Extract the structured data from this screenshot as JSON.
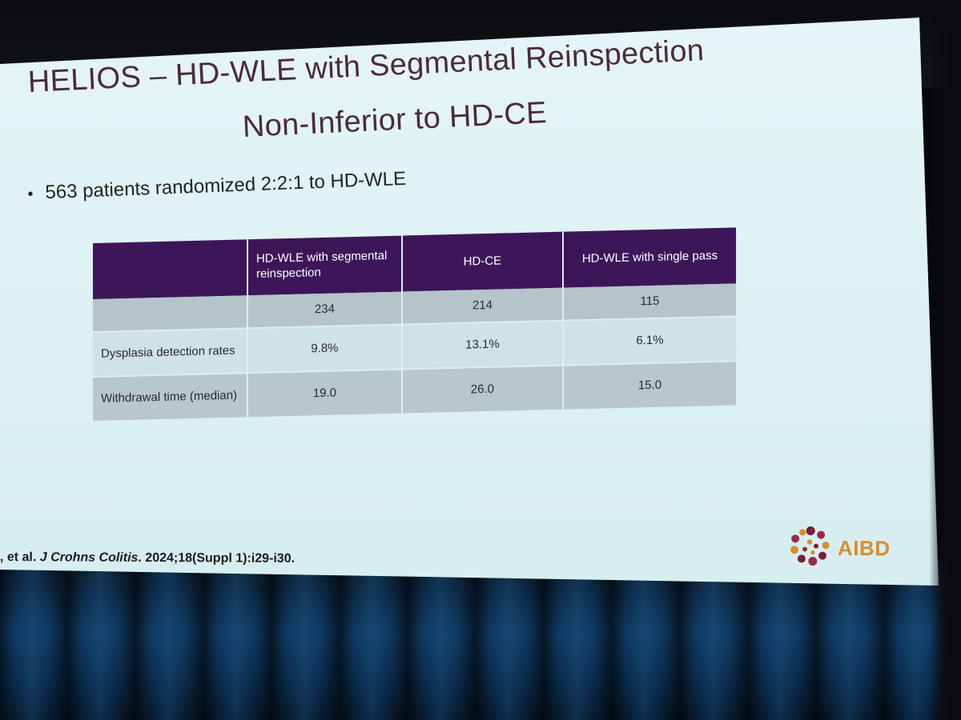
{
  "slide": {
    "title_line1": "HELIOS – HD-WLE with Segmental Reinspection",
    "title_line2": "Non-Inferior to HD-CE",
    "bullet_symbol": "•",
    "bullet": "563 patients randomized 2:2:1 to HD-WLE",
    "table": {
      "headers": [
        "",
        "HD-WLE with segmental reinspection",
        "HD-CE",
        "HD-WLE with single pass"
      ],
      "rows": [
        {
          "label": "",
          "values": [
            "234",
            "214",
            "115"
          ]
        },
        {
          "label": "Dysplasia detection rates",
          "values": [
            "9.8%",
            "13.1%",
            "6.1%"
          ]
        },
        {
          "label": "Withdrawal time (median)",
          "values": [
            "19.0",
            "26.0",
            "15.0"
          ]
        }
      ]
    },
    "citation_prefix": ", et al. ",
    "citation_journal": "J Crohns Colitis",
    "citation_rest": ". 2024;18(Suppl 1):i29-i30.",
    "logo_text": "AIBD"
  },
  "colors": {
    "header_purple": "#3d1659",
    "title": "#4b2a3c",
    "logo_orange": "#d98e2a",
    "logo_maroon": "#7a1e3a"
  }
}
